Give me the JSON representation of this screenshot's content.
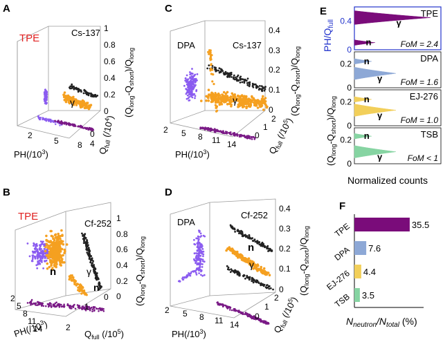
{
  "colors": {
    "neutron_tpe": "#7a0c7a",
    "dpa": "#8da8d6",
    "ej276": "#f2cf5a",
    "tsb": "#86d4a2",
    "scatter_orange": "#f5a020",
    "scatter_purple": "#8b5cf0",
    "scatter_dark_purple": "#7a1a86",
    "scatter_black": "#222222",
    "tpe_label": "#e02020",
    "ylabel_blue": "#2233cc"
  },
  "panels": {
    "A": {
      "letter": "A",
      "material": "TPE",
      "source": "Cs-137",
      "x_ticks": [
        "2",
        "5",
        "8"
      ],
      "y_ticks": [
        "0",
        "4"
      ],
      "z_ticks": [
        "0",
        "0.2",
        "0.4",
        "0.6",
        "0.8",
        "1"
      ],
      "region_labels": [
        "γ"
      ]
    },
    "B": {
      "letter": "B",
      "material": "TPE",
      "source": "Cf-252",
      "x_ticks": [
        "2",
        "5",
        "8",
        "11",
        "14"
      ],
      "y_ticks": [
        "2",
        "1",
        "0"
      ],
      "z_ticks": [
        "0",
        "0.2",
        "0.4",
        "0.6",
        "0.8",
        "1"
      ],
      "region_labels": [
        "n",
        "γ",
        "n"
      ]
    },
    "C": {
      "letter": "C",
      "material": "DPA",
      "source": "Cs-137",
      "x_ticks": [
        "2",
        "5",
        "8",
        "11",
        "14"
      ],
      "y_ticks": [
        "0",
        "1",
        "2"
      ],
      "z_ticks": [
        "0",
        "0.1",
        "0.2",
        "0.3",
        "0.4"
      ],
      "region_labels": [
        "γ"
      ]
    },
    "D": {
      "letter": "D",
      "material": "DPA",
      "source": "Cf-252",
      "x_ticks": [
        "2",
        "5",
        "8",
        "11",
        "14"
      ],
      "y_ticks": [
        "0",
        "1",
        "2"
      ],
      "z_ticks": [
        "0",
        "0.1",
        "0.2",
        "0.3",
        "0.4"
      ],
      "region_labels": [
        "n",
        "γ"
      ]
    },
    "E": {
      "letter": "E",
      "xlabel": "Normalized counts"
    },
    "F": {
      "letter": "F",
      "xlabel_parts": [
        "N",
        "neutron",
        "/N",
        "total",
        " (%)"
      ]
    }
  },
  "axis_text": {
    "ph_a": "PH(/10",
    "ph_a_exp": "3",
    "ph_a_close": ")",
    "qfull": "Q",
    "qfull_sub": "full",
    "qfull_a_unit": " (/10",
    "qfull_a_exp": "4",
    "qfull_unit_close": ")",
    "qfull_b_unit": " (/10",
    "qfull_b_exp": "5",
    "psd_z": "(Q",
    "psd_long": "long",
    "psd_minus": "-Q",
    "psd_short": "short",
    "psd_close": ")/Q",
    "psd_long2": "long",
    "e_top_y": "PH/Q",
    "e_top_y_sub": "full"
  },
  "chart_data": [
    {
      "panel": "E",
      "type": "histogram",
      "xlabel": "Normalized counts",
      "rows": [
        {
          "material": "TPE",
          "fom": "FoM = 2.4",
          "ylabel": "PH/Qfull",
          "yticks": [
            "0",
            "0.4"
          ],
          "peaks": [
            {
              "label": "n",
              "y": 0.1
            },
            {
              "label": "γ",
              "y": 0.45
            }
          ]
        },
        {
          "material": "DPA",
          "fom": "FoM = 1.6",
          "yticks": [
            "0",
            "0.2"
          ],
          "peaks": [
            {
              "label": "n",
              "y": 0.22
            },
            {
              "label": "γ",
              "y": 0.12
            }
          ]
        },
        {
          "material": "EJ-276",
          "fom": "FoM = 1.0",
          "yticks": [
            "0",
            "0.2"
          ],
          "peaks": [
            {
              "label": "n",
              "y": 0.22
            },
            {
              "label": "γ",
              "y": 0.13
            }
          ]
        },
        {
          "material": "TSB",
          "fom": "FoM < 1",
          "yticks": [
            "0",
            "0.2"
          ],
          "peaks": [
            {
              "label": "n",
              "y": 0.23
            },
            {
              "label": "γ",
              "y": 0.1
            }
          ]
        }
      ],
      "shared_ylabel": "(Qlong-Qshort)/Qlong"
    },
    {
      "panel": "F",
      "type": "bar",
      "orientation": "horizontal",
      "categories": [
        "TPE",
        "DPA",
        "EJ-276",
        "TSB"
      ],
      "values": [
        35.5,
        7.6,
        4.4,
        3.5
      ],
      "value_labels": [
        "35.5",
        "7.6",
        "4.4",
        "3.5"
      ],
      "colors": [
        "#7a0c7a",
        "#8da8d6",
        "#f2cf5a",
        "#86d4a2"
      ],
      "xlabel": "Nneutron/Ntotal (%)"
    }
  ]
}
